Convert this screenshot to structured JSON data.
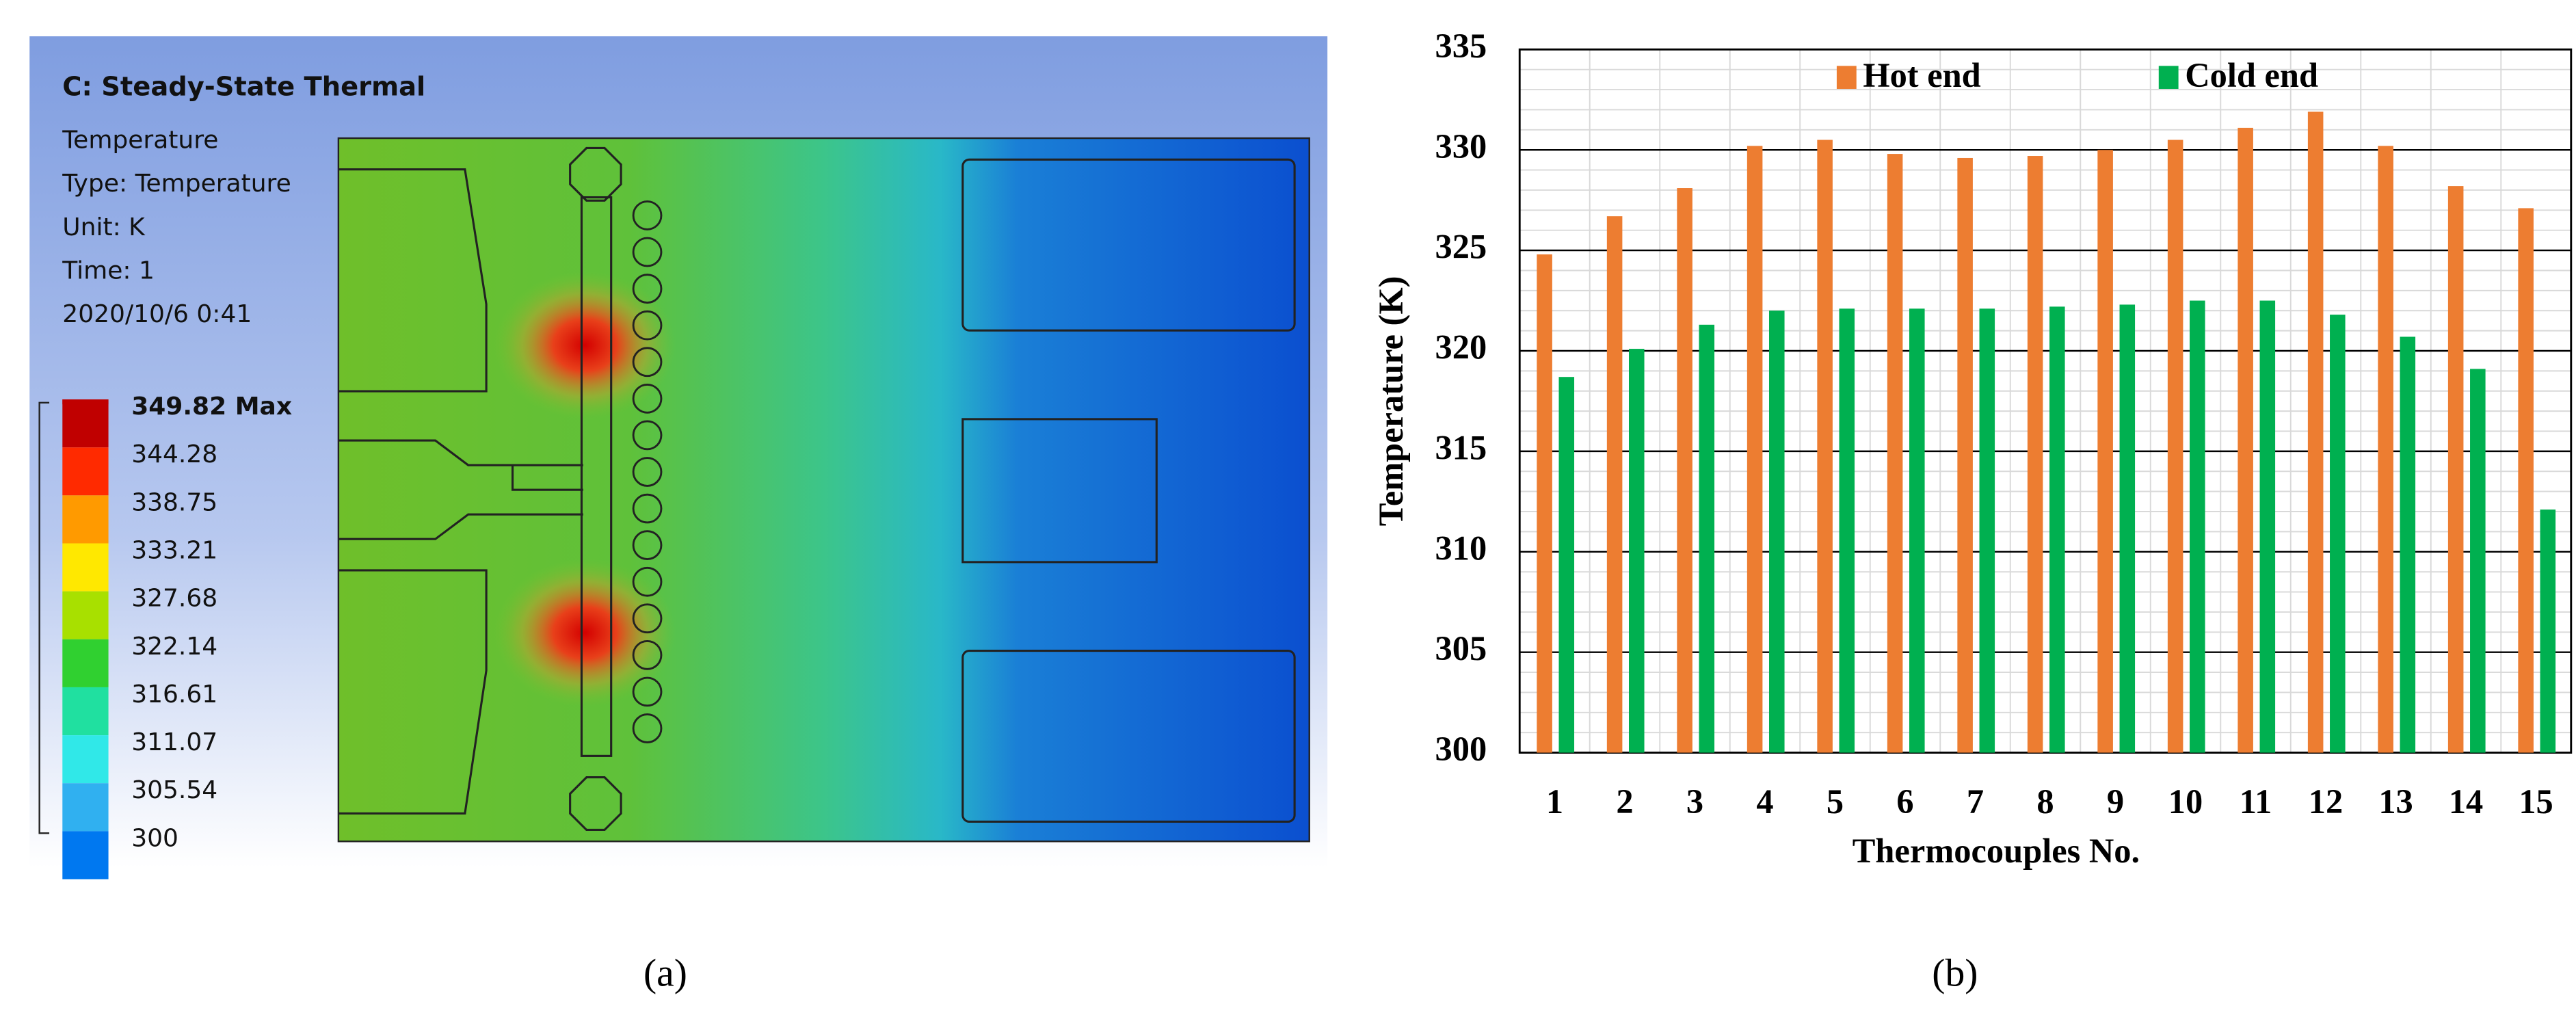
{
  "panel_a": {
    "title": "C: Steady-State Thermal",
    "info": [
      "Temperature",
      "Type: Temperature",
      "Unit: K",
      "Time: 1",
      "2020/10/6 0:41"
    ],
    "legend": [
      "349.82 Max",
      "344.28",
      "338.75",
      "333.21",
      "327.68",
      "322.14",
      "316.61",
      "311.07",
      "305.54",
      "300"
    ],
    "caption": "(a)"
  },
  "chart_data": {
    "type": "bar",
    "x_label": "Thermocouples No.",
    "y_label": "Temperature (K)",
    "categories": [
      "1",
      "2",
      "3",
      "4",
      "5",
      "6",
      "7",
      "8",
      "9",
      "10",
      "11",
      "12",
      "13",
      "14",
      "15"
    ],
    "series": [
      {
        "name": "Hot end",
        "color": "#ed7d31",
        "values": [
          324.8,
          326.7,
          328.1,
          330.2,
          330.5,
          329.8,
          329.6,
          329.7,
          330.0,
          330.5,
          331.1,
          331.9,
          330.2,
          328.2,
          327.1
        ]
      },
      {
        "name": "Cold end",
        "color": "#00b050",
        "values": [
          318.7,
          320.1,
          321.3,
          322.0,
          322.1,
          322.1,
          322.1,
          322.2,
          322.3,
          322.5,
          322.5,
          321.8,
          320.7,
          319.1,
          312.1
        ]
      }
    ],
    "ylim": [
      300,
      335
    ],
    "yticks": [
      300,
      305,
      310,
      315,
      320,
      325,
      330,
      335
    ],
    "grid": true,
    "caption": "(b)"
  }
}
